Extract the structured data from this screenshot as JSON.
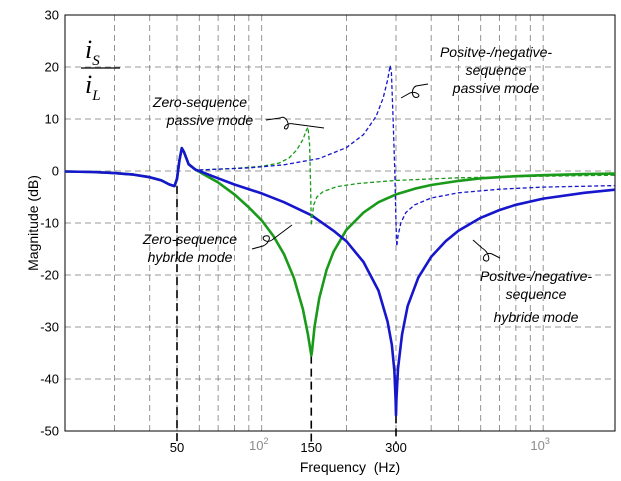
{
  "chart_data": {
    "type": "line",
    "xlabel": "Frequency  (Hz)",
    "ylabel": "Magnitude (dB)",
    "x_scale": "log",
    "xlim": [
      20,
      1800
    ],
    "ylim": [
      -50,
      30
    ],
    "grid": true,
    "y_ticks": [
      30,
      20,
      10,
      0,
      -10,
      -20,
      -30,
      -40,
      -50
    ],
    "y_tick_labels": [
      "30",
      "20",
      "10",
      "0",
      "-10",
      "-20",
      "-30",
      "-40",
      "-50"
    ],
    "x_tick_labels": [
      {
        "value": 50,
        "text": "50",
        "size": "large"
      },
      {
        "value": 150,
        "text": "150",
        "size": "large"
      },
      {
        "value": 300,
        "text": "300",
        "size": "large"
      }
    ],
    "x_decade_labels": [
      {
        "value": 100,
        "base": "10",
        "exp": "2"
      },
      {
        "value": 1000,
        "base": "10",
        "exp": "3"
      }
    ],
    "ratio_label": {
      "numerator": "i",
      "numerator_sub": "S",
      "denominator": "i",
      "denominator_sub": "L"
    },
    "series": [
      {
        "color": "#1a9a1a",
        "dash": "solid",
        "width": 2.6,
        "points": [
          [
            20,
            -0.1
          ],
          [
            25,
            -0.2
          ],
          [
            30,
            -0.4
          ],
          [
            35,
            -0.7
          ],
          [
            40,
            -1.2
          ],
          [
            44,
            -1.8
          ],
          [
            47,
            -2.6
          ],
          [
            49,
            -2.9
          ],
          [
            50,
            -1.5
          ],
          [
            51,
            2.0
          ],
          [
            52,
            4.4
          ],
          [
            53,
            3.6
          ],
          [
            55,
            1.3
          ],
          [
            58,
            0.3
          ],
          [
            62,
            -0.6
          ],
          [
            70,
            -2.2
          ],
          [
            80,
            -4.5
          ],
          [
            90,
            -7.0
          ],
          [
            100,
            -9.5
          ],
          [
            110,
            -12.5
          ],
          [
            120,
            -16.0
          ],
          [
            130,
            -20.5
          ],
          [
            140,
            -26.5
          ],
          [
            146,
            -31.5
          ],
          [
            149,
            -34.5
          ],
          [
            150,
            -35.5
          ],
          [
            151,
            -34.5
          ],
          [
            154,
            -30.0
          ],
          [
            160,
            -24.5
          ],
          [
            170,
            -19.0
          ],
          [
            180,
            -15.5
          ],
          [
            200,
            -11.3
          ],
          [
            230,
            -8.0
          ],
          [
            260,
            -6.0
          ],
          [
            300,
            -4.5
          ],
          [
            350,
            -3.4
          ],
          [
            400,
            -2.7
          ],
          [
            500,
            -1.9
          ],
          [
            600,
            -1.4
          ],
          [
            800,
            -1.0
          ],
          [
            1000,
            -0.8
          ],
          [
            1400,
            -0.6
          ],
          [
            1800,
            -0.5
          ]
        ]
      },
      {
        "color": "#1616cc",
        "dash": "solid",
        "width": 2.6,
        "points": [
          [
            20,
            -0.1
          ],
          [
            25,
            -0.2
          ],
          [
            30,
            -0.4
          ],
          [
            35,
            -0.7
          ],
          [
            40,
            -1.2
          ],
          [
            44,
            -1.8
          ],
          [
            47,
            -2.6
          ],
          [
            49,
            -2.9
          ],
          [
            50,
            -1.5
          ],
          [
            51,
            2.0
          ],
          [
            52,
            4.4
          ],
          [
            53,
            3.6
          ],
          [
            55,
            1.3
          ],
          [
            58,
            0.3
          ],
          [
            62,
            -0.3
          ],
          [
            70,
            -1.4
          ],
          [
            80,
            -2.6
          ],
          [
            100,
            -4.3
          ],
          [
            120,
            -6.0
          ],
          [
            150,
            -8.5
          ],
          [
            180,
            -11.5
          ],
          [
            200,
            -13.5
          ],
          [
            230,
            -17.5
          ],
          [
            260,
            -23.0
          ],
          [
            280,
            -29.0
          ],
          [
            290,
            -33.5
          ],
          [
            296,
            -38.5
          ],
          [
            299,
            -44.0
          ],
          [
            300,
            -47.0
          ],
          [
            301,
            -44.0
          ],
          [
            305,
            -38.0
          ],
          [
            315,
            -31.5
          ],
          [
            330,
            -26.0
          ],
          [
            360,
            -20.5
          ],
          [
            400,
            -16.5
          ],
          [
            450,
            -13.5
          ],
          [
            500,
            -11.5
          ],
          [
            600,
            -9.0
          ],
          [
            700,
            -7.5
          ],
          [
            800,
            -6.5
          ],
          [
            1000,
            -5.3
          ],
          [
            1400,
            -4.2
          ],
          [
            1800,
            -3.6
          ]
        ]
      },
      {
        "color": "#1a9a1a",
        "dash": "dashed",
        "width": 1.3,
        "points": [
          [
            60,
            0.2
          ],
          [
            80,
            0.5
          ],
          [
            100,
            0.9
          ],
          [
            115,
            1.5
          ],
          [
            125,
            2.5
          ],
          [
            133,
            4.0
          ],
          [
            140,
            6.0
          ],
          [
            144,
            7.8
          ],
          [
            146,
            8.4
          ],
          [
            148,
            5.0
          ],
          [
            149,
            -2.0
          ],
          [
            150,
            -10.5
          ],
          [
            151,
            -9.0
          ],
          [
            153,
            -6.5
          ],
          [
            157,
            -5.0
          ],
          [
            165,
            -4.0
          ],
          [
            185,
            -3.0
          ],
          [
            220,
            -2.4
          ],
          [
            300,
            -1.8
          ],
          [
            500,
            -1.3
          ],
          [
            1000,
            -1.0
          ],
          [
            1800,
            -0.8
          ]
        ]
      },
      {
        "color": "#1616cc",
        "dash": "dashed",
        "width": 1.3,
        "points": [
          [
            60,
            0.2
          ],
          [
            90,
            0.6
          ],
          [
            120,
            1.2
          ],
          [
            160,
            2.4
          ],
          [
            200,
            4.5
          ],
          [
            230,
            7.0
          ],
          [
            255,
            10.5
          ],
          [
            270,
            14.0
          ],
          [
            280,
            17.5
          ],
          [
            286,
            20.3
          ],
          [
            289,
            19.0
          ],
          [
            293,
            10.0
          ],
          [
            297,
            0.0
          ],
          [
            300,
            -10.0
          ],
          [
            302,
            -14.5
          ],
          [
            305,
            -12.5
          ],
          [
            312,
            -10.0
          ],
          [
            325,
            -8.0
          ],
          [
            350,
            -6.5
          ],
          [
            400,
            -5.2
          ],
          [
            500,
            -4.2
          ],
          [
            700,
            -3.5
          ],
          [
            1000,
            -3.1
          ],
          [
            1800,
            -2.8
          ]
        ]
      }
    ],
    "annotations": [
      {
        "lines": [
          "Zero-sequence",
          "passive mode"
        ]
      },
      {
        "lines": [
          "Positve-/negative-",
          "sequence",
          "passive mode"
        ]
      },
      {
        "lines": [
          "Zero-sequence",
          "hybride mode"
        ]
      },
      {
        "lines": [
          "Positve-/negative-",
          "sequence",
          "hybride mode"
        ]
      }
    ]
  }
}
